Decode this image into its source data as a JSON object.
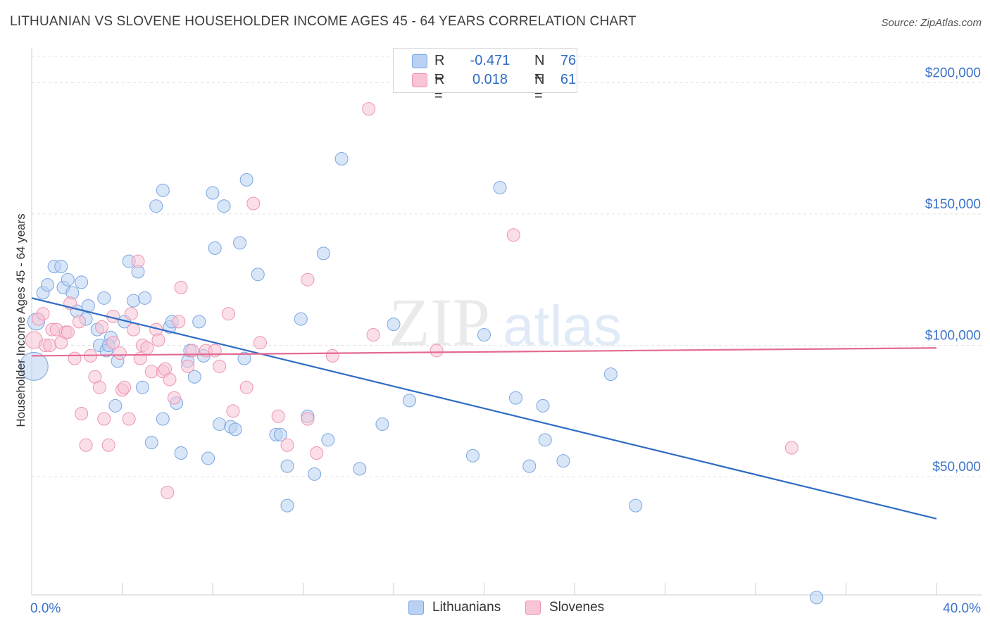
{
  "header": {
    "title": "LITHUANIAN VS SLOVENE HOUSEHOLDER INCOME AGES 45 - 64 YEARS CORRELATION CHART",
    "source": "Source: ZipAtlas.com"
  },
  "legend_top": {
    "rows": [
      {
        "r_label": "R =",
        "r_value": "-0.471",
        "n_label": "N =",
        "n_value": "76"
      },
      {
        "r_label": "R =",
        "r_value": "0.018",
        "n_label": "N =",
        "n_value": "61"
      }
    ]
  },
  "legend_bottom": {
    "items": [
      {
        "label": "Lithuanians"
      },
      {
        "label": "Slovenes"
      }
    ]
  },
  "watermark": {
    "zip": "ZIP",
    "atlas": "atlas"
  },
  "chart_data": {
    "type": "scatter",
    "title": "LITHUANIAN VS SLOVENE HOUSEHOLDER INCOME AGES 45 - 64 YEARS CORRELATION CHART",
    "xlabel": "",
    "ylabel": "Householder Income Ages 45 - 64 years",
    "x_ticks": [
      "0.0%",
      "40.0%"
    ],
    "y_ticks": [
      "$50,000",
      "$100,000",
      "$150,000",
      "$200,000"
    ],
    "y_tick_values": [
      50000,
      100000,
      150000,
      200000
    ],
    "xlim": [
      0,
      40
    ],
    "ylim": [
      5000,
      210000
    ],
    "grid": true,
    "legend_position": "bottom",
    "colors": {
      "Lithuanians": {
        "fill": "#b9d1f3",
        "stroke": "#7ba6e0",
        "line": "#2f6cc4"
      },
      "Slovenes": {
        "fill": "#f8c5d5",
        "stroke": "#ee93b1",
        "line": "#e36a92"
      }
    },
    "series": [
      {
        "name": "Lithuanians",
        "trend": {
          "x": [
            0,
            40
          ],
          "y": [
            118000,
            34000
          ]
        },
        "points": [
          [
            0.1,
            92000,
            3
          ],
          [
            0.2,
            109000,
            2
          ],
          [
            0.5,
            120000,
            1
          ],
          [
            0.7,
            123000,
            1
          ],
          [
            1.0,
            130000,
            1
          ],
          [
            1.4,
            122000,
            1
          ],
          [
            1.6,
            125000,
            1
          ],
          [
            1.8,
            120000,
            1
          ],
          [
            2.2,
            124000,
            1
          ],
          [
            2.0,
            113000,
            1
          ],
          [
            2.4,
            110000,
            1
          ],
          [
            2.5,
            115000,
            1
          ],
          [
            2.9,
            106000,
            1
          ],
          [
            3.2,
            118000,
            1
          ],
          [
            3.5,
            103000,
            1
          ],
          [
            3.0,
            100000,
            1
          ],
          [
            3.3,
            98000,
            1
          ],
          [
            3.8,
            94000,
            1
          ],
          [
            4.1,
            109000,
            1
          ],
          [
            4.5,
            117000,
            1
          ],
          [
            4.3,
            132000,
            1
          ],
          [
            4.7,
            128000,
            1
          ],
          [
            5.0,
            118000,
            1
          ],
          [
            5.5,
            153000,
            1
          ],
          [
            5.8,
            159000,
            1
          ],
          [
            4.9,
            84000,
            1
          ],
          [
            3.7,
            77000,
            1
          ],
          [
            5.3,
            63000,
            1
          ],
          [
            5.8,
            72000,
            1
          ],
          [
            6.1,
            107000,
            1
          ],
          [
            6.2,
            109000,
            1
          ],
          [
            6.4,
            78000,
            1
          ],
          [
            6.6,
            59000,
            1
          ],
          [
            6.9,
            94000,
            1
          ],
          [
            7.0,
            98000,
            1
          ],
          [
            7.2,
            88000,
            1
          ],
          [
            7.4,
            109000,
            1
          ],
          [
            7.6,
            96000,
            1
          ],
          [
            7.8,
            57000,
            1
          ],
          [
            8.0,
            158000,
            1
          ],
          [
            8.1,
            137000,
            1
          ],
          [
            8.5,
            153000,
            1
          ],
          [
            8.3,
            70000,
            1
          ],
          [
            8.8,
            69000,
            1
          ],
          [
            9.0,
            68000,
            1
          ],
          [
            9.2,
            139000,
            1
          ],
          [
            9.4,
            95000,
            1
          ],
          [
            9.5,
            163000,
            1
          ],
          [
            10.0,
            127000,
            1
          ],
          [
            10.8,
            66000,
            1
          ],
          [
            11.0,
            66000,
            1
          ],
          [
            11.3,
            54000,
            1
          ],
          [
            11.3,
            39000,
            1
          ],
          [
            11.9,
            110000,
            1
          ],
          [
            12.2,
            73000,
            1
          ],
          [
            12.5,
            51000,
            1
          ],
          [
            12.9,
            135000,
            1
          ],
          [
            13.1,
            64000,
            1
          ],
          [
            13.7,
            171000,
            1
          ],
          [
            14.5,
            53000,
            1
          ],
          [
            15.5,
            70000,
            1
          ],
          [
            16.0,
            108000,
            1
          ],
          [
            16.7,
            79000,
            1
          ],
          [
            19.5,
            58000,
            1
          ],
          [
            20.0,
            104000,
            1
          ],
          [
            20.7,
            160000,
            1
          ],
          [
            21.4,
            80000,
            1
          ],
          [
            22.0,
            54000,
            1
          ],
          [
            22.6,
            77000,
            1
          ],
          [
            22.7,
            64000,
            1
          ],
          [
            23.5,
            56000,
            1
          ],
          [
            25.6,
            89000,
            1
          ],
          [
            26.7,
            39000,
            1
          ],
          [
            34.7,
            4000,
            1
          ],
          [
            1.3,
            130000,
            1
          ],
          [
            3.4,
            100000,
            1
          ]
        ]
      },
      {
        "name": "Slovenes",
        "trend": {
          "x": [
            0,
            40
          ],
          "y": [
            96000,
            99000
          ]
        },
        "points": [
          [
            0.1,
            102000,
            2
          ],
          [
            0.3,
            110000,
            1
          ],
          [
            0.5,
            112000,
            1
          ],
          [
            0.6,
            100000,
            1
          ],
          [
            0.8,
            100000,
            1
          ],
          [
            0.9,
            106000,
            1
          ],
          [
            1.1,
            106000,
            1
          ],
          [
            1.3,
            101000,
            1
          ],
          [
            1.5,
            105000,
            1
          ],
          [
            1.6,
            105000,
            1
          ],
          [
            1.7,
            116000,
            1
          ],
          [
            1.9,
            95000,
            1
          ],
          [
            2.1,
            109000,
            1
          ],
          [
            2.2,
            74000,
            1
          ],
          [
            2.4,
            62000,
            1
          ],
          [
            2.6,
            96000,
            1
          ],
          [
            2.8,
            88000,
            1
          ],
          [
            3.0,
            84000,
            1
          ],
          [
            3.1,
            107000,
            1
          ],
          [
            3.2,
            72000,
            1
          ],
          [
            3.4,
            62000,
            1
          ],
          [
            3.6,
            101000,
            1
          ],
          [
            3.6,
            111000,
            1
          ],
          [
            3.9,
            97000,
            1
          ],
          [
            4.0,
            83000,
            1
          ],
          [
            4.1,
            84000,
            1
          ],
          [
            4.3,
            72000,
            1
          ],
          [
            4.4,
            112000,
            1
          ],
          [
            4.5,
            106000,
            1
          ],
          [
            4.7,
            132000,
            1
          ],
          [
            4.8,
            95000,
            1
          ],
          [
            4.9,
            100000,
            1
          ],
          [
            5.1,
            99000,
            1
          ],
          [
            5.3,
            90000,
            1
          ],
          [
            5.5,
            106000,
            1
          ],
          [
            5.6,
            102000,
            1
          ],
          [
            5.8,
            90000,
            1
          ],
          [
            5.9,
            91000,
            1
          ],
          [
            6.0,
            44000,
            1
          ],
          [
            6.1,
            87000,
            1
          ],
          [
            6.3,
            80000,
            1
          ],
          [
            6.5,
            109000,
            1
          ],
          [
            6.6,
            122000,
            1
          ],
          [
            6.9,
            92000,
            1
          ],
          [
            7.1,
            98000,
            1
          ],
          [
            7.7,
            98000,
            1
          ],
          [
            8.1,
            98000,
            1
          ],
          [
            8.3,
            92000,
            1
          ],
          [
            8.7,
            112000,
            1
          ],
          [
            8.9,
            75000,
            1
          ],
          [
            9.5,
            84000,
            1
          ],
          [
            9.8,
            154000,
            1
          ],
          [
            10.1,
            101000,
            1
          ],
          [
            10.9,
            73000,
            1
          ],
          [
            11.3,
            62000,
            1
          ],
          [
            12.2,
            125000,
            1
          ],
          [
            12.6,
            59000,
            1
          ],
          [
            13.3,
            96000,
            1
          ],
          [
            14.9,
            190000,
            1
          ],
          [
            15.1,
            104000,
            1
          ],
          [
            17.9,
            98000,
            1
          ],
          [
            21.3,
            142000,
            1
          ],
          [
            33.6,
            61000,
            1
          ],
          [
            12.2,
            72000,
            1
          ]
        ]
      }
    ]
  }
}
